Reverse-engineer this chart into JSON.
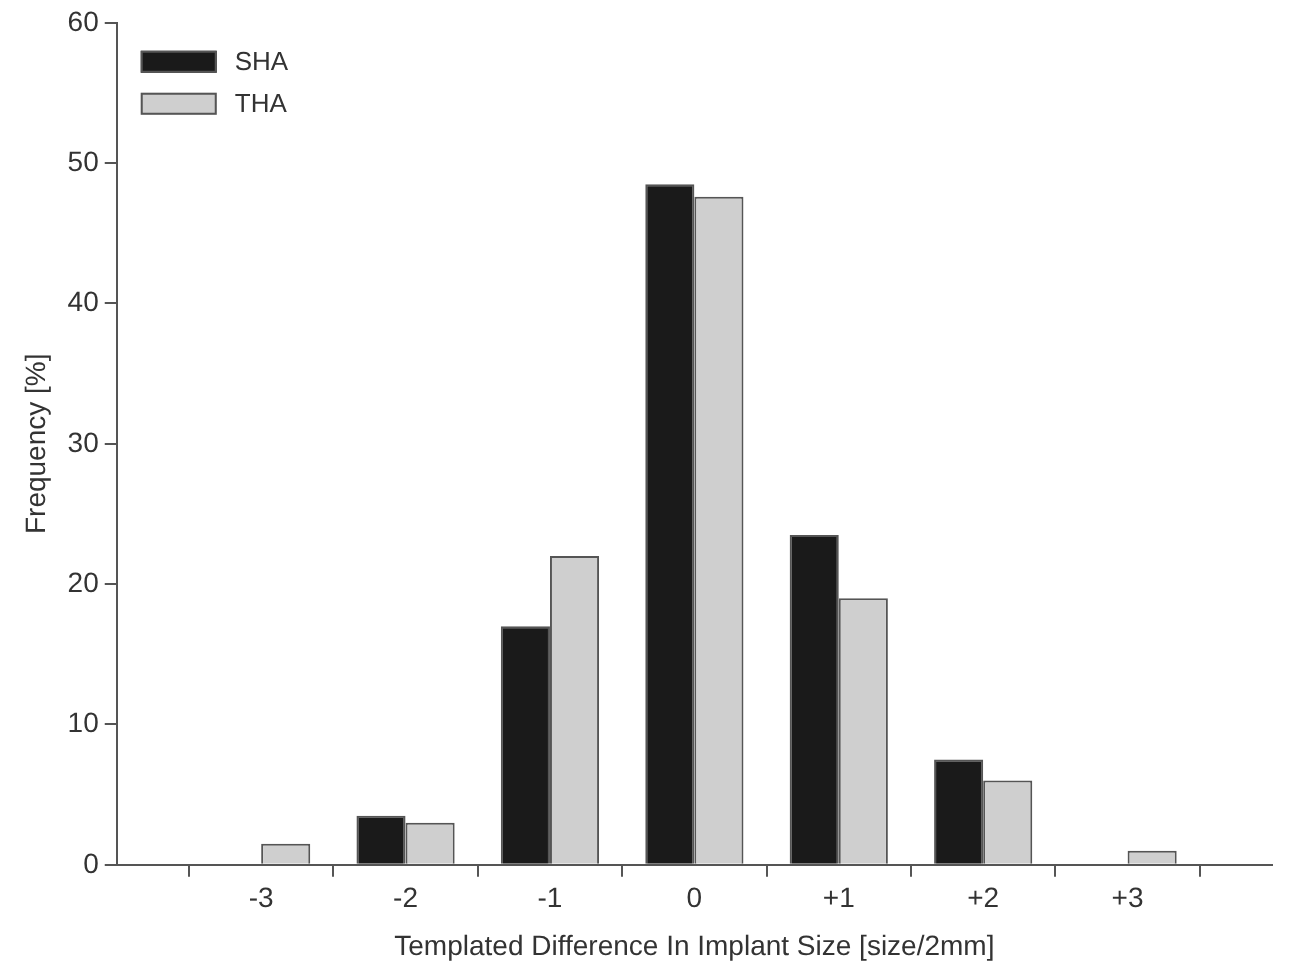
{
  "chart_data": {
    "type": "bar",
    "xlabel": "Templated Difference In Implant Size [size/2mm]",
    "ylabel": "Frequency [%]",
    "categories": [
      null,
      "-3",
      "-2",
      "-1",
      "0",
      "+1",
      "+2",
      "+3",
      null
    ],
    "series": [
      {
        "name": "SHA",
        "color": "#1a1a1a",
        "values": [
          null,
          0,
          3.5,
          17,
          48.5,
          23.5,
          7.5,
          0,
          null
        ]
      },
      {
        "name": "THA",
        "color": "#cfcfcf",
        "values": [
          null,
          1.5,
          3,
          22,
          47.6,
          19,
          6,
          1,
          null
        ]
      }
    ],
    "ylim": [
      0,
      60
    ],
    "yticks": [
      0,
      10,
      20,
      30,
      40,
      50,
      60
    ],
    "grid": false,
    "legend": "top left"
  }
}
